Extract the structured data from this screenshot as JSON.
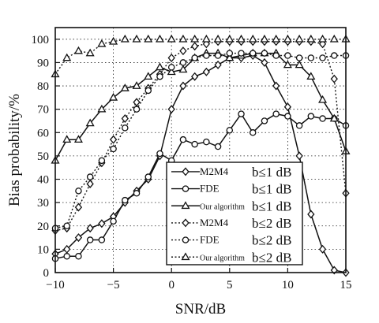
{
  "chart_data": {
    "type": "line",
    "title": "",
    "xlabel": "SNR/dB",
    "ylabel": "Bias probability/%",
    "xlim": [
      -10,
      15
    ],
    "ylim": [
      0,
      105
    ],
    "xticks": [
      -10,
      -5,
      0,
      5,
      10,
      15
    ],
    "yticks": [
      0,
      10,
      20,
      30,
      40,
      50,
      60,
      70,
      80,
      90,
      100
    ],
    "grid": true,
    "legend_position": "center",
    "series": [
      {
        "name": "M2M4",
        "condition": "b≤1 dB",
        "marker": "diamond",
        "line": "solid",
        "x": [
          -10,
          -9,
          -8,
          -7,
          -6,
          -5,
          -4,
          -3,
          -2,
          -1,
          0,
          1,
          2,
          3,
          4,
          5,
          6,
          7,
          8,
          9,
          10,
          11,
          12,
          13,
          14,
          15
        ],
        "y": [
          8,
          10,
          15,
          19,
          21,
          24,
          30,
          35,
          40,
          50,
          70,
          80,
          84,
          86,
          89,
          92,
          92,
          93,
          90,
          80,
          71,
          50,
          25,
          10,
          1,
          0
        ]
      },
      {
        "name": "FDE",
        "condition": "b≤1 dB",
        "marker": "circle",
        "line": "solid",
        "x": [
          -10,
          -9,
          -8,
          -7,
          -6,
          -5,
          -4,
          -3,
          -2,
          -1,
          0,
          1,
          2,
          3,
          4,
          5,
          6,
          7,
          8,
          9,
          10,
          11,
          12,
          13,
          14,
          15
        ],
        "y": [
          6,
          7,
          7,
          14,
          14,
          22,
          31,
          34,
          41,
          51,
          48,
          57,
          55,
          56,
          54,
          61,
          68,
          60,
          65,
          68,
          67,
          63,
          67,
          66,
          66,
          63
        ]
      },
      {
        "name": "Our algorithm",
        "condition": "b≤1 dB",
        "marker": "triangle",
        "line": "solid",
        "x": [
          -10,
          -9,
          -8,
          -7,
          -6,
          -5,
          -4,
          -3,
          -2,
          -1,
          0,
          1,
          2,
          3,
          4,
          5,
          6,
          7,
          8,
          9,
          10,
          11,
          12,
          13,
          14,
          15
        ],
        "y": [
          48,
          57,
          57,
          64,
          70,
          75,
          79,
          80,
          84,
          88,
          86,
          87,
          92,
          94,
          94,
          92,
          93,
          94,
          94,
          94,
          89,
          89,
          84,
          74,
          66,
          52
        ]
      },
      {
        "name": "M2M4",
        "condition": "b≤2 dB",
        "marker": "diamond",
        "line": "dotted",
        "x": [
          -10,
          -9,
          -8,
          -7,
          -6,
          -5,
          -4,
          -3,
          -2,
          -1,
          0,
          1,
          2,
          3,
          4,
          5,
          6,
          7,
          8,
          9,
          10,
          11,
          12,
          13,
          14,
          15
        ],
        "y": [
          18,
          19,
          28,
          38,
          47,
          57,
          66,
          73,
          79,
          85,
          92,
          95,
          97,
          98,
          99,
          99,
          99,
          99,
          99,
          99,
          99,
          99,
          99,
          98,
          83,
          34
        ]
      },
      {
        "name": "FDE",
        "condition": "b≤2 dB",
        "marker": "circle",
        "line": "dotted",
        "x": [
          -10,
          -9,
          -8,
          -7,
          -6,
          -5,
          -4,
          -3,
          -2,
          -1,
          0,
          1,
          2,
          3,
          4,
          5,
          6,
          7,
          8,
          9,
          10,
          11,
          12,
          13,
          14,
          15
        ],
        "y": [
          19,
          20,
          35,
          41,
          48,
          53,
          62,
          70,
          78,
          84,
          88,
          90,
          92,
          93,
          93,
          94,
          94,
          94,
          94,
          93,
          93,
          92,
          92,
          92,
          93,
          93
        ]
      },
      {
        "name": "Our algorithm",
        "condition": "b≤2 dB",
        "marker": "triangle",
        "line": "dotted",
        "x": [
          -10,
          -9,
          -8,
          -7,
          -6,
          -5,
          -4,
          -3,
          -2,
          -1,
          0,
          1,
          2,
          3,
          4,
          5,
          6,
          7,
          8,
          9,
          10,
          11,
          12,
          13,
          14,
          15
        ],
        "y": [
          85,
          92,
          95,
          94,
          98,
          99,
          100,
          100,
          100,
          100,
          100,
          100,
          100,
          100,
          100,
          100,
          100,
          100,
          100,
          100,
          100,
          100,
          100,
          100,
          100,
          100
        ]
      }
    ]
  }
}
